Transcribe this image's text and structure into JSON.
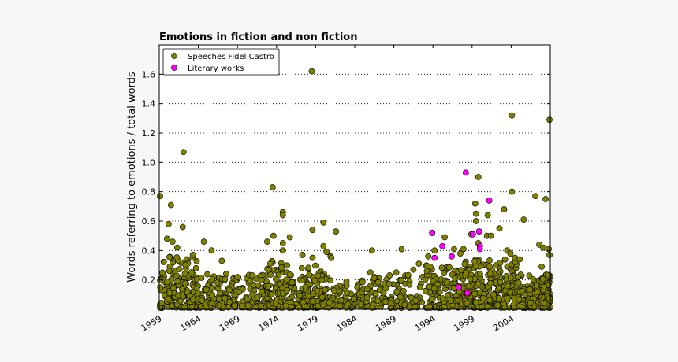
{
  "chart_data": {
    "type": "scatter",
    "title": "Emotions in fiction and non fiction",
    "xlabel": "",
    "ylabel": "Words referring to emotions / total words",
    "xlim": [
      1959,
      2009
    ],
    "ylim": [
      0.0,
      1.8
    ],
    "xticks": [
      "1959",
      "1964",
      "1969",
      "1974",
      "1979",
      "1984",
      "1989",
      "1994",
      "1999",
      "2004"
    ],
    "yticks": [
      "0.2",
      "0.4",
      "0.6",
      "0.8",
      "1.0",
      "1.2",
      "1.4",
      "1.6"
    ],
    "grid": "horizontal dotted",
    "legend_position": "top-left",
    "series": [
      {
        "name": "Speeches Fidel Castro",
        "color": "#808000",
        "points": [
          [
            1959.1,
            0.77
          ],
          [
            1960.0,
            0.48
          ],
          [
            1960.2,
            0.58
          ],
          [
            1960.5,
            0.71
          ],
          [
            1960.7,
            0.46
          ],
          [
            1961.3,
            0.42
          ],
          [
            1962.0,
            0.56
          ],
          [
            1962.1,
            1.07
          ],
          [
            1963.3,
            0.37
          ],
          [
            1964.7,
            0.46
          ],
          [
            1965.7,
            0.4
          ],
          [
            1967.0,
            0.33
          ],
          [
            1972.8,
            0.46
          ],
          [
            1973.5,
            0.83
          ],
          [
            1973.6,
            0.5
          ],
          [
            1974.8,
            0.66
          ],
          [
            1974.8,
            0.64
          ],
          [
            1974.8,
            0.45
          ],
          [
            1974.8,
            0.4
          ],
          [
            1975.7,
            0.49
          ],
          [
            1977.3,
            0.37
          ],
          [
            1978.5,
            1.62
          ],
          [
            1978.6,
            0.54
          ],
          [
            1978.6,
            0.35
          ],
          [
            1980.0,
            0.59
          ],
          [
            1980.0,
            0.43
          ],
          [
            1980.4,
            0.39
          ],
          [
            1981.6,
            0.53
          ],
          [
            1980.9,
            0.36
          ],
          [
            1981.0,
            0.35
          ],
          [
            1986.0,
            0.25
          ],
          [
            1986.2,
            0.4
          ],
          [
            1989.3,
            0.25
          ],
          [
            1990.0,
            0.41
          ],
          [
            1991.5,
            0.27
          ],
          [
            1992.2,
            0.31
          ],
          [
            1993.4,
            0.36
          ],
          [
            1994.2,
            0.4
          ],
          [
            1995.5,
            0.49
          ],
          [
            1996.7,
            0.41
          ],
          [
            1997.5,
            0.38
          ],
          [
            1997.9,
            0.41
          ],
          [
            1998.9,
            0.51
          ],
          [
            1999.4,
            0.72
          ],
          [
            1999.5,
            0.65
          ],
          [
            1999.5,
            0.6
          ],
          [
            1999.8,
            0.9
          ],
          [
            1999.8,
            0.45
          ],
          [
            2000.9,
            0.5
          ],
          [
            2001.0,
            0.64
          ],
          [
            2001.4,
            0.5
          ],
          [
            2002.5,
            0.55
          ],
          [
            2003.1,
            0.68
          ],
          [
            2003.5,
            0.4
          ],
          [
            2003.9,
            0.38
          ],
          [
            2004.1,
            1.32
          ],
          [
            2004.1,
            0.8
          ],
          [
            2004.5,
            0.35
          ],
          [
            2005.1,
            0.34
          ],
          [
            2005.6,
            0.61
          ],
          [
            2007.1,
            0.77
          ],
          [
            2007.6,
            0.44
          ],
          [
            2008.1,
            0.42
          ],
          [
            2008.4,
            0.75
          ],
          [
            2008.9,
            1.29
          ],
          [
            2008.8,
            0.41
          ],
          [
            2008.9,
            0.37
          ],
          [
            2007.9,
            0.29
          ]
        ],
        "dense_bands": [
          {
            "x": [
              1959.0,
              1963.8
            ],
            "y": [
              0.01,
              0.36
            ],
            "n": 150,
            "seed": 11
          },
          {
            "x": [
              1963.8,
              1972.8
            ],
            "y": [
              0.01,
              0.24
            ],
            "n": 190,
            "seed": 12
          },
          {
            "x": [
              1972.8,
              1974.8
            ],
            "y": [
              0.01,
              0.34
            ],
            "n": 70,
            "seed": 13
          },
          {
            "x": [
              1974.8,
              1980.6
            ],
            "y": [
              0.01,
              0.3
            ],
            "n": 140,
            "seed": 14
          },
          {
            "x": [
              1980.6,
              1985.5
            ],
            "y": [
              0.01,
              0.2
            ],
            "n": 80,
            "seed": 15
          },
          {
            "x": [
              1985.5,
              1993.0
            ],
            "y": [
              0.01,
              0.24
            ],
            "n": 110,
            "seed": 16
          },
          {
            "x": [
              1993.0,
              1998.0
            ],
            "y": [
              0.01,
              0.3
            ],
            "n": 140,
            "seed": 17
          },
          {
            "x": [
              1998.0,
              2004.8
            ],
            "y": [
              0.01,
              0.34
            ],
            "n": 230,
            "seed": 18
          },
          {
            "x": [
              2004.8,
              2007.8
            ],
            "y": [
              0.01,
              0.24
            ],
            "n": 70,
            "seed": 19
          },
          {
            "x": [
              2007.8,
              2009.0
            ],
            "y": [
              0.01,
              0.24
            ],
            "n": 90,
            "seed": 20
          }
        ]
      },
      {
        "name": "Literary works",
        "color": "#ff00ff",
        "points": [
          [
            1993.9,
            0.52
          ],
          [
            1994.2,
            0.35
          ],
          [
            1995.2,
            0.43
          ],
          [
            1996.4,
            0.36
          ],
          [
            1997.3,
            0.15
          ],
          [
            1998.2,
            0.93
          ],
          [
            1998.4,
            0.11
          ],
          [
            1999.1,
            0.51
          ],
          [
            1999.9,
            0.53
          ],
          [
            2000.0,
            0.43
          ],
          [
            2000.0,
            0.41
          ],
          [
            2001.2,
            0.74
          ]
        ]
      }
    ]
  }
}
